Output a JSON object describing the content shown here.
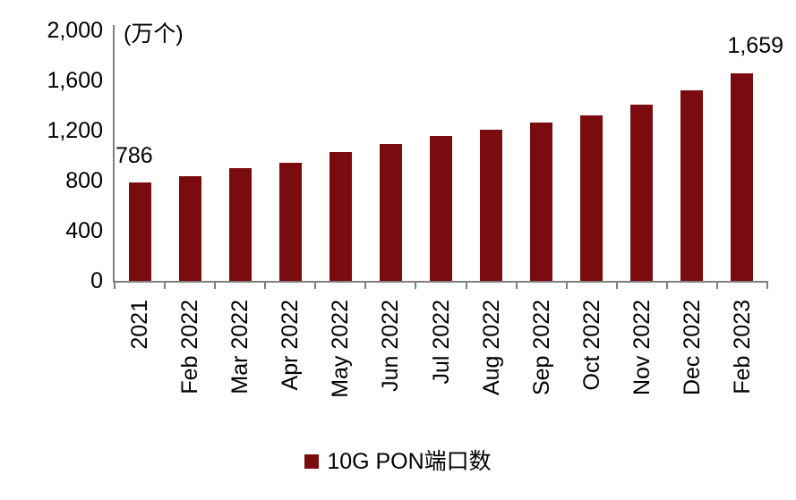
{
  "chart_data": {
    "type": "bar",
    "title": "",
    "unit_label": "(万个)",
    "categories": [
      "2021",
      "Feb 2022",
      "Mar 2022",
      "Apr 2022",
      "May 2022",
      "Jun 2022",
      "Jul 2022",
      "Aug 2022",
      "Sep 2022",
      "Oct 2022",
      "Nov 2022",
      "Dec 2022",
      "Feb 2023"
    ],
    "values": [
      786,
      835,
      898,
      942,
      1030,
      1095,
      1155,
      1210,
      1262,
      1323,
      1410,
      1523,
      1659
    ],
    "ylim": [
      0,
      2000
    ],
    "yticks": [
      0,
      400,
      800,
      1200,
      1600,
      2000
    ],
    "ytick_labels": [
      "0",
      "400",
      "800",
      "1,200",
      "1,600",
      "2,000"
    ],
    "xlabel": "",
    "ylabel": "",
    "grid": false,
    "legend_position": "bottom",
    "legend": [
      {
        "label": "10G PON端口数",
        "color": "#7a0c0f"
      }
    ],
    "annotations": [
      {
        "text": "786",
        "target": "first-bar"
      },
      {
        "text": "1,659",
        "target": "last-bar"
      }
    ],
    "colors": {
      "bar": "#7a0c0f",
      "axis": "#7f7f7f",
      "text": "#000000",
      "background": "#ffffff"
    }
  }
}
